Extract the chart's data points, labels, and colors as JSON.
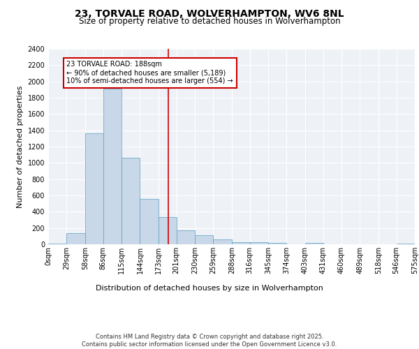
{
  "title": "23, TORVALE ROAD, WOLVERHAMPTON, WV6 8NL",
  "subtitle": "Size of property relative to detached houses in Wolverhampton",
  "xlabel": "Distribution of detached houses by size in Wolverhampton",
  "ylabel": "Number of detached properties",
  "bar_color": "#c8d8e8",
  "bar_edge_color": "#5a9fc0",
  "background_color": "#eef2f7",
  "grid_color": "#ffffff",
  "vline_x": 188,
  "vline_color": "#cc0000",
  "annotation_text": "23 TORVALE ROAD: 188sqm\n← 90% of detached houses are smaller (5,189)\n10% of semi-detached houses are larger (554) →",
  "annotation_box_color": "#cc0000",
  "bin_edges": [
    0,
    29,
    58,
    86,
    115,
    144,
    173,
    201,
    230,
    259,
    288,
    316,
    345,
    374,
    403,
    431,
    460,
    489,
    518,
    546,
    575
  ],
  "bar_heights": [
    10,
    135,
    1360,
    1910,
    1060,
    560,
    335,
    170,
    110,
    60,
    30,
    25,
    15,
    0,
    15,
    0,
    0,
    0,
    0,
    10
  ],
  "ylim": [
    0,
    2400
  ],
  "yticks": [
    0,
    200,
    400,
    600,
    800,
    1000,
    1200,
    1400,
    1600,
    1800,
    2000,
    2200,
    2400
  ],
  "tick_labels": [
    "0sqm",
    "29sqm",
    "58sqm",
    "86sqm",
    "115sqm",
    "144sqm",
    "173sqm",
    "201sqm",
    "230sqm",
    "259sqm",
    "288sqm",
    "316sqm",
    "345sqm",
    "374sqm",
    "403sqm",
    "431sqm",
    "460sqm",
    "489sqm",
    "518sqm",
    "546sqm",
    "575sqm"
  ],
  "footer": "Contains HM Land Registry data © Crown copyright and database right 2025.\nContains public sector information licensed under the Open Government Licence v3.0.",
  "title_fontsize": 10,
  "subtitle_fontsize": 8.5,
  "label_fontsize": 8,
  "tick_fontsize": 7,
  "footer_fontsize": 6
}
